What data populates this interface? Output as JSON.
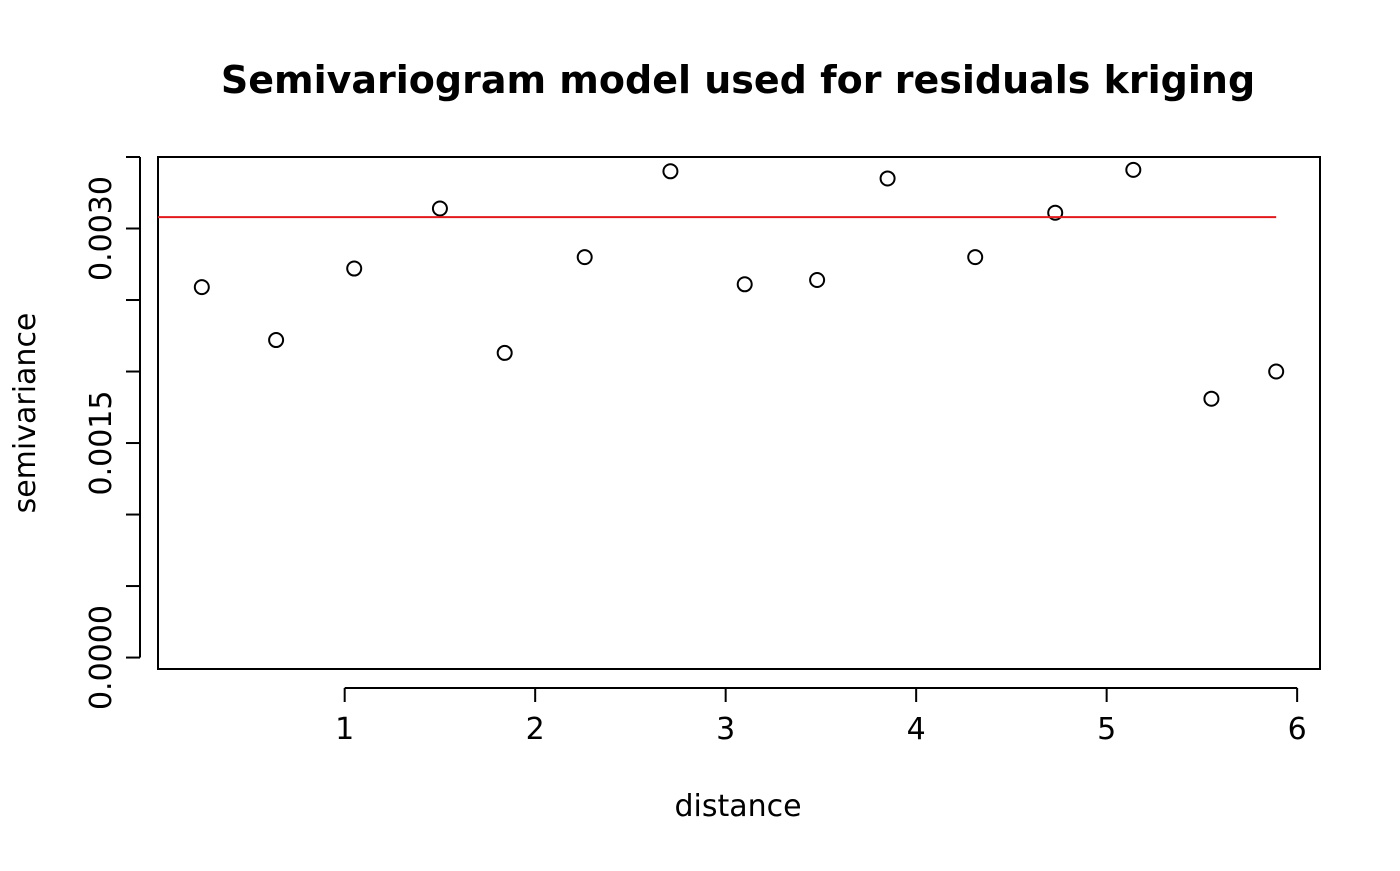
{
  "chart_data": {
    "type": "scatter",
    "title": "Semivariogram model used for residuals kriging",
    "xlabel": "distance",
    "ylabel": "semivariance",
    "xlim": [
      0.02,
      6.12
    ],
    "ylim": [
      -8e-05,
      0.0035
    ],
    "x_ticks": [
      1,
      2,
      3,
      4,
      5,
      6
    ],
    "x_tick_labels": [
      "1",
      "2",
      "3",
      "4",
      "5",
      "6"
    ],
    "y_ticks": [
      0.0,
      0.0005,
      0.001,
      0.0015,
      0.002,
      0.0025,
      0.003,
      0.0035
    ],
    "y_tick_labels": [
      "0.0000",
      "",
      "",
      "0.0015",
      "",
      "",
      "0.0030",
      ""
    ],
    "grid": false,
    "series": [
      {
        "kind": "points",
        "marker": "open-circle",
        "color": "#000000",
        "x": [
          0.25,
          0.64,
          1.05,
          1.5,
          1.84,
          2.26,
          2.71,
          3.1,
          3.48,
          3.85,
          4.31,
          4.73,
          5.14,
          5.55,
          5.89
        ],
        "y": [
          0.00259,
          0.00222,
          0.00272,
          0.00314,
          0.00213,
          0.0028,
          0.0034,
          0.00261,
          0.00264,
          0.00335,
          0.0028,
          0.00311,
          0.00341,
          0.00181,
          0.002
        ]
      },
      {
        "kind": "line",
        "color": "#e31a1c",
        "x": [
          0.02,
          5.89
        ],
        "y": [
          0.00308,
          0.00308
        ]
      }
    ]
  }
}
